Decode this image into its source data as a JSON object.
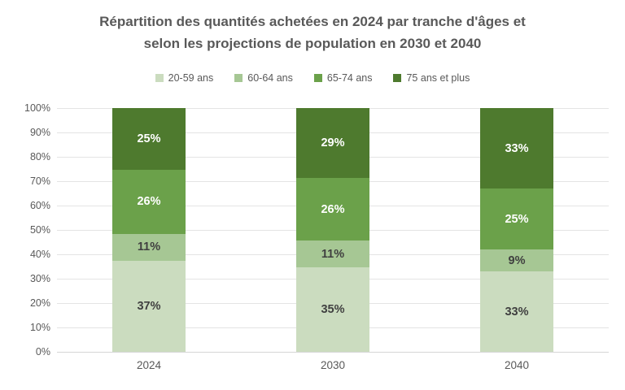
{
  "title": {
    "lines": [
      "Répartition des quantités achetées en 2024 par tranche d'âges et",
      "selon les projections de population en 2030 et 2040"
    ],
    "full": "Répartition des quantités achetées en 2024 par tranche d'âges et selon les projections de population en 2030 et 2040"
  },
  "chart_data": {
    "type": "bar",
    "stacked": true,
    "stacked_unit": "percent",
    "categories": [
      "2024",
      "2030",
      "2040"
    ],
    "series": [
      {
        "name": "20-59 ans",
        "color": "#cbdcbf",
        "label_color": "#404040",
        "values": [
          37,
          35,
          33
        ]
      },
      {
        "name": "60-64 ans",
        "color": "#a6c794",
        "label_color": "#404040",
        "values": [
          11,
          11,
          9
        ]
      },
      {
        "name": "65-74 ans",
        "color": "#6ba14a",
        "label_color": "#ffffff",
        "values": [
          26,
          26,
          25
        ]
      },
      {
        "name": "75 ans et plus",
        "color": "#4e7a2e",
        "label_color": "#ffffff",
        "values": [
          25,
          29,
          33
        ]
      }
    ],
    "value_suffix": "%",
    "xlabel": "",
    "ylabel": "",
    "ylim": [
      0,
      100
    ],
    "yticks": [
      "0%",
      "10%",
      "20%",
      "30%",
      "40%",
      "50%",
      "60%",
      "70%",
      "80%",
      "90%",
      "100%"
    ],
    "grid": true,
    "legend_position": "top"
  },
  "colors": {
    "title_text": "#595959",
    "axis_text": "#595959",
    "gridline": "#e4e4e4",
    "axis_line": "#d6d6d6",
    "background": "#ffffff"
  }
}
